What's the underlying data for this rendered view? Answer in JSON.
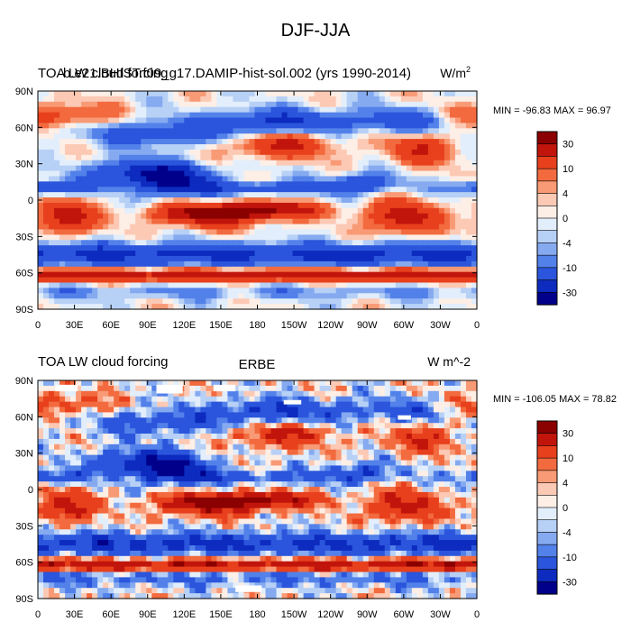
{
  "figure": {
    "title": "DJF-JJA"
  },
  "panels": [
    {
      "left_label": "TOA LW cloud forcing",
      "center_label": "b.e21.BHIST.f09_g17.DAMIP-hist-sol.002 (yrs 1990-2014)",
      "units_prefix": "W/m",
      "units_sup": "2",
      "stats": "MIN = -96.83 MAX =  96.97"
    },
    {
      "left_label": "TOA LW cloud forcing",
      "center_label": "ERBE",
      "units_prefix": "W m^-2",
      "units_sup": "",
      "stats": "MIN = -106.05 MAX =  78.82"
    }
  ],
  "axes": {
    "x_ticks": [
      "0",
      "30E",
      "60E",
      "90E",
      "120E",
      "150E",
      "180",
      "150W",
      "120W",
      "90W",
      "60W",
      "30W",
      "0"
    ],
    "y_ticks": [
      "90N",
      "60N",
      "30N",
      "0",
      "30S",
      "60S",
      "90S"
    ]
  },
  "colorbar": {
    "labels": [
      "30",
      "10",
      "4",
      "0",
      "-4",
      "-10",
      "-30"
    ],
    "colors": [
      "#8b0000",
      "#c1150c",
      "#e8401c",
      "#f26a3e",
      "#f89a75",
      "#fcc9b4",
      "#fdeee6",
      "#e2eefb",
      "#b7d0f6",
      "#86aaf0",
      "#5381ea",
      "#2a55dc",
      "#0d2bbf",
      "#00008b"
    ]
  },
  "chart_data": [
    {
      "type": "heatmap",
      "title": "DJF-JJA",
      "subtitle": "b.e21.BHIST.f09_g17.DAMIP-hist-sol.002 (yrs 1990-2014)",
      "variable": "TOA LW cloud forcing",
      "units": "W/m2",
      "xlim": [
        0,
        360
      ],
      "ylim": [
        -90,
        90
      ],
      "min": -96.83,
      "max": 96.97,
      "levels": [
        -30,
        -20,
        -10,
        -6,
        -4,
        -2,
        0,
        2,
        4,
        6,
        10,
        20,
        30
      ]
    },
    {
      "type": "heatmap",
      "title": "DJF-JJA",
      "subtitle": "ERBE",
      "variable": "TOA LW cloud forcing",
      "units": "W m^-2",
      "xlim": [
        0,
        360
      ],
      "ylim": [
        -90,
        90
      ],
      "min": -106.05,
      "max": 78.82,
      "levels": [
        -30,
        -20,
        -10,
        -6,
        -4,
        -2,
        0,
        2,
        4,
        6,
        10,
        20,
        30
      ]
    }
  ]
}
